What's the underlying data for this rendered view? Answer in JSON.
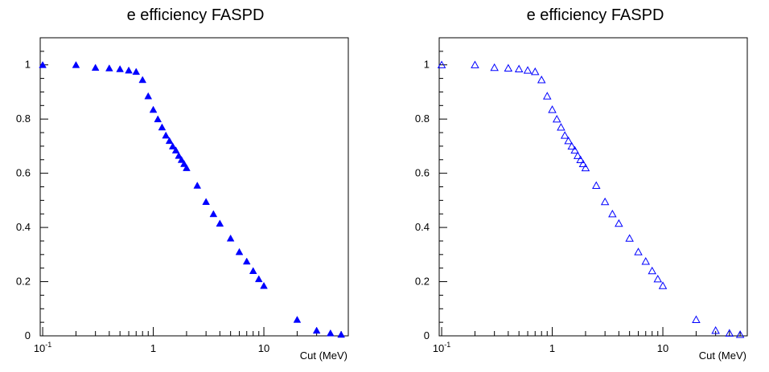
{
  "colors": {
    "marker": "#0000ff",
    "axis": "#000000",
    "background": "#ffffff"
  },
  "chart_data": [
    {
      "type": "scatter",
      "title": "e efficiency FASPD",
      "xlabel": "Cut (MeV)",
      "ylabel": "",
      "xscale": "log",
      "xlim": [
        0.095,
        58
      ],
      "ylim": [
        0,
        1.1
      ],
      "x_tick_labels": [
        {
          "base": "10",
          "exp": "-1"
        },
        {
          "text": "1"
        },
        {
          "text": "10"
        }
      ],
      "y_tick_labels": [
        "0",
        "0.2",
        "0.4",
        "0.6",
        "0.8",
        "1"
      ],
      "marker": "filled-triangle",
      "series": [
        {
          "x": [
            0.1,
            0.2,
            0.3,
            0.4,
            0.5,
            0.6,
            0.7,
            0.8,
            0.9,
            1.0,
            1.1,
            1.2,
            1.3,
            1.4,
            1.5,
            1.6,
            1.7,
            1.8,
            1.9,
            2.0,
            2.5,
            3,
            3.5,
            4,
            5,
            6,
            7,
            8,
            9,
            10,
            20,
            30,
            40,
            50
          ],
          "y": [
            1.0,
            1.0,
            0.99,
            0.988,
            0.985,
            0.98,
            0.975,
            0.945,
            0.885,
            0.835,
            0.8,
            0.77,
            0.74,
            0.72,
            0.7,
            0.685,
            0.665,
            0.65,
            0.635,
            0.62,
            0.555,
            0.495,
            0.45,
            0.415,
            0.36,
            0.31,
            0.275,
            0.24,
            0.21,
            0.185,
            0.06,
            0.02,
            0.01,
            0.005
          ]
        }
      ]
    },
    {
      "type": "scatter",
      "title": "e efficiency FASPD",
      "xlabel": "Cut (MeV)",
      "ylabel": "",
      "xscale": "log",
      "xlim": [
        0.095,
        58
      ],
      "ylim": [
        0,
        1.1
      ],
      "x_tick_labels": [
        {
          "base": "10",
          "exp": "-1"
        },
        {
          "text": "1"
        },
        {
          "text": "10"
        }
      ],
      "y_tick_labels": [
        "0",
        "0.2",
        "0.4",
        "0.6",
        "0.8",
        "1"
      ],
      "marker": "open-triangle",
      "series": [
        {
          "x": [
            0.1,
            0.2,
            0.3,
            0.4,
            0.5,
            0.6,
            0.7,
            0.8,
            0.9,
            1.0,
            1.1,
            1.2,
            1.3,
            1.4,
            1.5,
            1.6,
            1.7,
            1.8,
            1.9,
            2.0,
            2.5,
            3,
            3.5,
            4,
            5,
            6,
            7,
            8,
            9,
            10,
            20,
            30,
            40,
            50
          ],
          "y": [
            1.0,
            1.0,
            0.99,
            0.988,
            0.985,
            0.98,
            0.975,
            0.945,
            0.885,
            0.835,
            0.8,
            0.77,
            0.74,
            0.72,
            0.7,
            0.685,
            0.665,
            0.65,
            0.635,
            0.62,
            0.555,
            0.495,
            0.45,
            0.415,
            0.36,
            0.31,
            0.275,
            0.24,
            0.21,
            0.185,
            0.06,
            0.02,
            0.01,
            0.005
          ]
        }
      ]
    }
  ]
}
